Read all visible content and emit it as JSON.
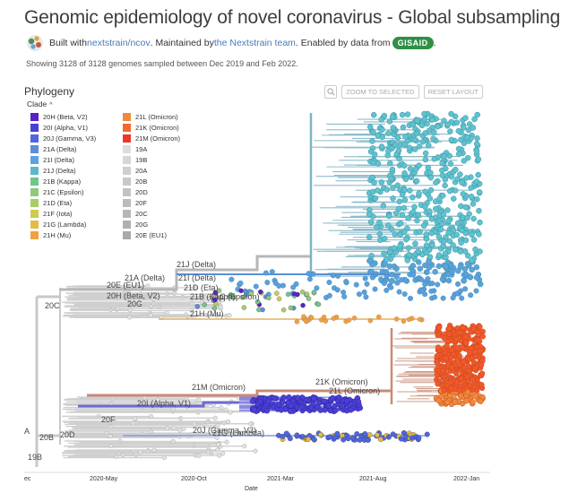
{
  "header": {
    "title": "Genomic epidemiology of novel coronavirus - Global subsampling",
    "built_with_prefix": "Built with ",
    "repo_link": "nextstrain/ncov",
    "maintained_prefix": ". Maintained by ",
    "team_link": "the Nextstrain team",
    "enabled_prefix": ". Enabled by data from ",
    "gisaid": "GISAID",
    "end_dot": ".",
    "showing": "Showing 3128 of 3128 genomes sampled between Dec 2019 and Feb 2022."
  },
  "panel": {
    "title": "Phylogeny",
    "zoom_icon": "magnifier-icon",
    "zoom_selected": "ZOOM TO SELECTED",
    "reset_layout": "RESET LAYOUT",
    "clade_label": "Clade",
    "clade_chevron": "^"
  },
  "legend": [
    {
      "label": "20H (Beta, V2)",
      "color": "#5a1fc9"
    },
    {
      "label": "20I (Alpha, V1)",
      "color": "#4a3fd6"
    },
    {
      "label": "20J (Gamma, V3)",
      "color": "#4f66e0"
    },
    {
      "label": "21A (Delta)",
      "color": "#5a8fd8"
    },
    {
      "label": "21I (Delta)",
      "color": "#5ba3dd"
    },
    {
      "label": "21J (Delta)",
      "color": "#5fb8c6"
    },
    {
      "label": "21B (Kappa)",
      "color": "#71c48d"
    },
    {
      "label": "21C (Epsilon)",
      "color": "#8ec97c"
    },
    {
      "label": "21D (Eta)",
      "color": "#a9cc6a"
    },
    {
      "label": "21F (Iota)",
      "color": "#cccc54"
    },
    {
      "label": "21G (Lambda)",
      "color": "#e3bb47"
    },
    {
      "label": "21H (Mu)",
      "color": "#eea23f"
    },
    {
      "label": "21L (Omicron)",
      "color": "#f08a3a"
    },
    {
      "label": "21K (Omicron)",
      "color": "#f06a30"
    },
    {
      "label": "21M (Omicron)",
      "color": "#e63a2a"
    },
    {
      "label": "19A",
      "color": "#dddddd"
    },
    {
      "label": "19B",
      "color": "#d6d6d6"
    },
    {
      "label": "20A",
      "color": "#cfcfcf"
    },
    {
      "label": "20B",
      "color": "#c8c8c8"
    },
    {
      "label": "20D",
      "color": "#c2c2c2"
    },
    {
      "label": "20F",
      "color": "#bcbcbc"
    },
    {
      "label": "20C",
      "color": "#b6b6b6"
    },
    {
      "label": "20G",
      "color": "#b0b0b0"
    },
    {
      "label": "20E (EU1)",
      "color": "#aaaaaa"
    }
  ],
  "tree_labels": [
    "21J (Delta)",
    "21A (Delta)",
    "21I (Delta)",
    "21D (Eta)",
    "20E (EU1)",
    "20H (Beta, V2)",
    "21B (Kappa)",
    "21C (Epsilon)",
    "20C",
    "20G",
    "21H (Mu)",
    "21M (Omicron)",
    "21K (Omicron)",
    "21L (Omicron)",
    "20I (Alpha, V1)",
    "20F",
    "20J (Gamma, V3)",
    "21G (Lambda)",
    "20B",
    "20D",
    "19B",
    "A"
  ],
  "x_axis": {
    "title": "Date",
    "ticks": [
      "ec",
      "2020-May",
      "2020-Oct",
      "2021-Mar",
      "2021-Aug",
      "2022-Jan"
    ]
  },
  "colors": {
    "delta_branch": "#7fb2c4",
    "omicron_branch": "#c98a78",
    "alpha_branch": "#6f6ad3",
    "root_branch": "#c8c8c8"
  }
}
